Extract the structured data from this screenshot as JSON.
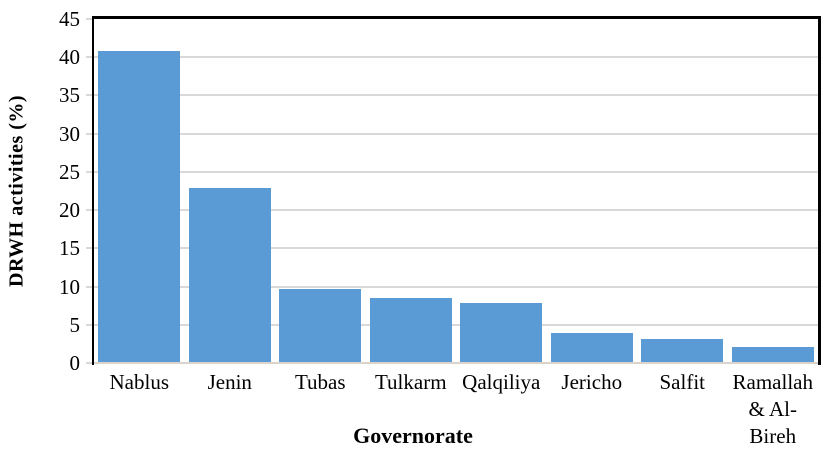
{
  "chart_data": {
    "type": "bar",
    "title": "",
    "xlabel": "Governorate",
    "ylabel": "DRWH activities (%)",
    "categories": [
      "Nablus",
      "Jenin",
      "Tubas",
      "Tulkarm",
      "Qalqiliya",
      "Jericho",
      "Salfit",
      "Ramallah\n& Al-\nBireh"
    ],
    "values": [
      40.8,
      22.9,
      9.7,
      8.5,
      7.8,
      3.9,
      3.2,
      2.1
    ],
    "ylim": [
      0,
      45
    ],
    "yticks": [
      0,
      5,
      10,
      15,
      20,
      25,
      30,
      35,
      40,
      45
    ],
    "grid": true,
    "legend_position": "none",
    "bar_color": "#5B9BD5",
    "gridline_color": "#D9D9D9",
    "baseline_color": "#DAD4CC",
    "axis_border_color": "#000000",
    "text_color": "#000000",
    "plot_background": "#FFFFFF"
  }
}
